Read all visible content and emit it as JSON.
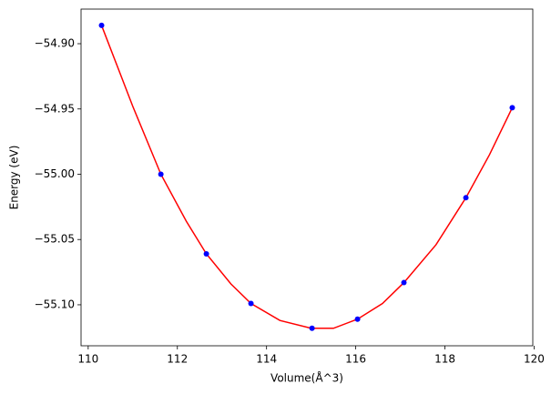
{
  "chart_data": {
    "type": "scatter",
    "xlabel": "Volume(Å^3)",
    "ylabel": "Energy (eV)",
    "xlim": [
      109.84,
      119.97
    ],
    "ylim": [
      -55.1314,
      -54.8735
    ],
    "xticks": [
      110,
      112,
      114,
      116,
      118,
      120
    ],
    "yticks": [
      {
        "value": -54.9,
        "label": "−54.90"
      },
      {
        "value": -54.95,
        "label": "−54.95"
      },
      {
        "value": -55.0,
        "label": "−55.00"
      },
      {
        "value": -55.05,
        "label": "−55.05"
      },
      {
        "value": -55.1,
        "label": "−55.10"
      }
    ],
    "series": [
      {
        "style": "line",
        "color": "#ff0000",
        "x": [
          110.3,
          111.0,
          111.63,
          112.2,
          112.65,
          113.2,
          113.65,
          114.3,
          115.0,
          115.5,
          116.04,
          116.6,
          117.08,
          117.8,
          118.47,
          119.0,
          119.51
        ],
        "values": [
          -54.886,
          -54.948,
          -55.0,
          -55.036,
          -55.061,
          -55.084,
          -55.099,
          -55.112,
          -55.118,
          -55.118,
          -55.111,
          -55.099,
          -55.083,
          -55.054,
          -55.018,
          -54.985,
          -54.949
        ]
      },
      {
        "style": "marker",
        "color": "#0000ff",
        "x": [
          110.3,
          111.63,
          112.65,
          113.65,
          115.02,
          116.04,
          117.08,
          118.47,
          119.51
        ],
        "values": [
          -54.886,
          -55.0,
          -55.061,
          -55.099,
          -55.118,
          -55.111,
          -55.083,
          -55.018,
          -54.949
        ]
      }
    ]
  }
}
